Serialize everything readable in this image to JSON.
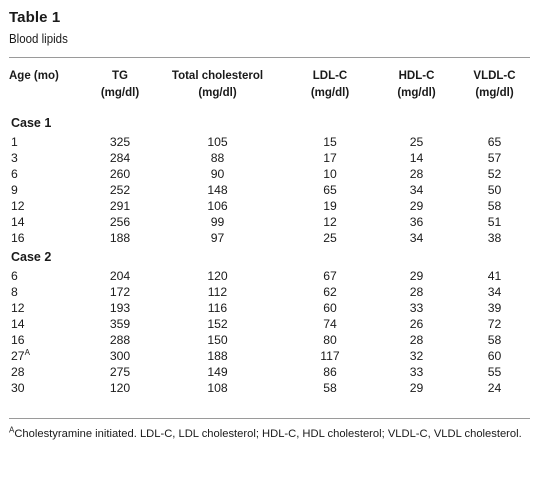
{
  "title": "Table 1",
  "subtitle": "Blood lipids",
  "columns": [
    {
      "line1": "Age (mo)",
      "line2": ""
    },
    {
      "line1": "TG",
      "line2": "(mg/dl)"
    },
    {
      "line1": "Total cholesterol",
      "line2": "(mg/dl)"
    },
    {
      "line1": "LDL-C",
      "line2": "(mg/dl)"
    },
    {
      "line1": "HDL-C",
      "line2": "(mg/dl)"
    },
    {
      "line1": "VLDL-C",
      "line2": "(mg/dl)"
    }
  ],
  "sections": [
    {
      "label": "Case 1",
      "rows": [
        {
          "age": "1",
          "age_note": "",
          "tg": "325",
          "total": "105",
          "ldl": "15",
          "hdl": "25",
          "vldl": "65"
        },
        {
          "age": "3",
          "age_note": "",
          "tg": "284",
          "total": "88",
          "ldl": "17",
          "hdl": "14",
          "vldl": "57"
        },
        {
          "age": "6",
          "age_note": "",
          "tg": "260",
          "total": "90",
          "ldl": "10",
          "hdl": "28",
          "vldl": "52"
        },
        {
          "age": "9",
          "age_note": "",
          "tg": "252",
          "total": "148",
          "ldl": "65",
          "hdl": "34",
          "vldl": "50"
        },
        {
          "age": "12",
          "age_note": "",
          "tg": "291",
          "total": "106",
          "ldl": "19",
          "hdl": "29",
          "vldl": "58"
        },
        {
          "age": "14",
          "age_note": "",
          "tg": "256",
          "total": "99",
          "ldl": "12",
          "hdl": "36",
          "vldl": "51"
        },
        {
          "age": "16",
          "age_note": "",
          "tg": "188",
          "total": "97",
          "ldl": "25",
          "hdl": "34",
          "vldl": "38"
        }
      ]
    },
    {
      "label": "Case 2",
      "rows": [
        {
          "age": "6",
          "age_note": "",
          "tg": "204",
          "total": "120",
          "ldl": "67",
          "hdl": "29",
          "vldl": "41"
        },
        {
          "age": "8",
          "age_note": "",
          "tg": "172",
          "total": "112",
          "ldl": "62",
          "hdl": "28",
          "vldl": "34"
        },
        {
          "age": "12",
          "age_note": "",
          "tg": "193",
          "total": "116",
          "ldl": "60",
          "hdl": "33",
          "vldl": "39"
        },
        {
          "age": "14",
          "age_note": "",
          "tg": "359",
          "total": "152",
          "ldl": "74",
          "hdl": "26",
          "vldl": "72"
        },
        {
          "age": "16",
          "age_note": "",
          "tg": "288",
          "total": "150",
          "ldl": "80",
          "hdl": "28",
          "vldl": "58"
        },
        {
          "age": "27",
          "age_note": "A",
          "tg": "300",
          "total": "188",
          "ldl": "117",
          "hdl": "32",
          "vldl": "60"
        },
        {
          "age": "28",
          "age_note": "",
          "tg": "275",
          "total": "149",
          "ldl": "86",
          "hdl": "33",
          "vldl": "55"
        },
        {
          "age": "30",
          "age_note": "",
          "tg": "120",
          "total": "108",
          "ldl": "58",
          "hdl": "29",
          "vldl": "24"
        }
      ]
    }
  ],
  "footnote": {
    "marker": "A",
    "text": "Cholestyramine initiated. LDL-C, LDL cholesterol; HDL-C, HDL cholesterol; VLDL-C, VLDL cholesterol."
  }
}
